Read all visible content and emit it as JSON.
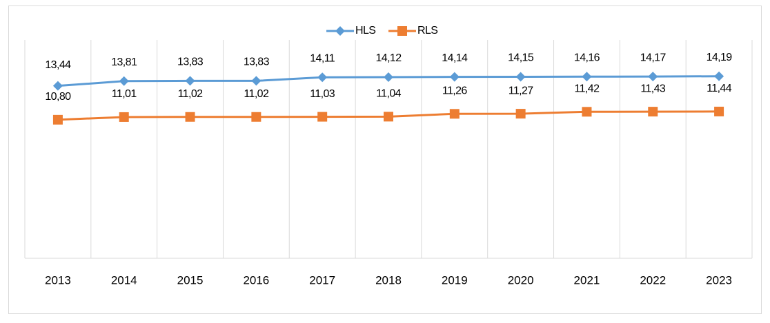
{
  "chart_data": {
    "type": "line",
    "categories": [
      "2013",
      "2014",
      "2015",
      "2016",
      "2017",
      "2018",
      "2019",
      "2020",
      "2021",
      "2022",
      "2023"
    ],
    "series": [
      {
        "name": "HLS",
        "color": "#5b9bd5",
        "marker": "diamond",
        "values": [
          13.44,
          13.81,
          13.83,
          13.83,
          14.11,
          14.12,
          14.14,
          14.15,
          14.16,
          14.17,
          14.19
        ],
        "value_labels": [
          "13,44",
          "13,81",
          "13,83",
          "13,83",
          "14,11",
          "14,12",
          "14,14",
          "14,15",
          "14,16",
          "14,17",
          "14,19"
        ]
      },
      {
        "name": "RLS",
        "color": "#ed7d31",
        "marker": "square",
        "values": [
          10.8,
          11.01,
          11.02,
          11.02,
          11.03,
          11.04,
          11.26,
          11.27,
          11.42,
          11.43,
          11.44
        ],
        "value_labels": [
          "10,80",
          "11,01",
          "11,02",
          "11,02",
          "11,03",
          "11,04",
          "11,26",
          "11,27",
          "11,42",
          "11,43",
          "11,44"
        ]
      }
    ],
    "ylim": [
      0,
      16
    ],
    "grid": true,
    "legend": "top"
  }
}
